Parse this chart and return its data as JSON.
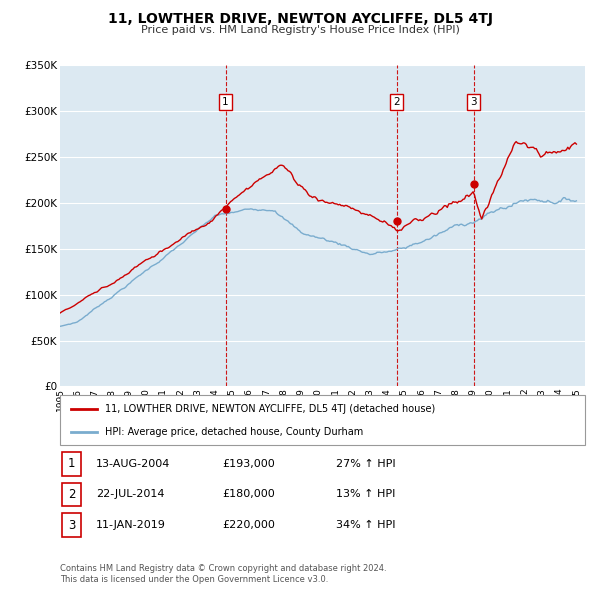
{
  "title": "11, LOWTHER DRIVE, NEWTON AYCLIFFE, DL5 4TJ",
  "subtitle": "Price paid vs. HM Land Registry's House Price Index (HPI)",
  "red_label": "11, LOWTHER DRIVE, NEWTON AYCLIFFE, DL5 4TJ (detached house)",
  "blue_label": "HPI: Average price, detached house, County Durham",
  "red_color": "#cc0000",
  "blue_color": "#7aacce",
  "bg_color": "#dce9f2",
  "ylim": [
    0,
    350000
  ],
  "yticks": [
    0,
    50000,
    100000,
    150000,
    200000,
    250000,
    300000,
    350000
  ],
  "ytick_labels": [
    "£0",
    "£50K",
    "£100K",
    "£150K",
    "£200K",
    "£250K",
    "£300K",
    "£350K"
  ],
  "sale_points": [
    {
      "date_num": 2004.617,
      "price": 193000,
      "label": "1",
      "date_str": "13-AUG-2004",
      "price_str": "£193,000",
      "hpi_str": "27% ↑ HPI"
    },
    {
      "date_num": 2014.554,
      "price": 180000,
      "label": "2",
      "date_str": "22-JUL-2014",
      "price_str": "£180,000",
      "hpi_str": "13% ↑ HPI"
    },
    {
      "date_num": 2019.036,
      "price": 220000,
      "label": "3",
      "date_str": "11-JAN-2019",
      "price_str": "£220,000",
      "hpi_str": "34% ↑ HPI"
    }
  ],
  "footer_line1": "Contains HM Land Registry data © Crown copyright and database right 2024.",
  "footer_line2": "This data is licensed under the Open Government Licence v3.0."
}
